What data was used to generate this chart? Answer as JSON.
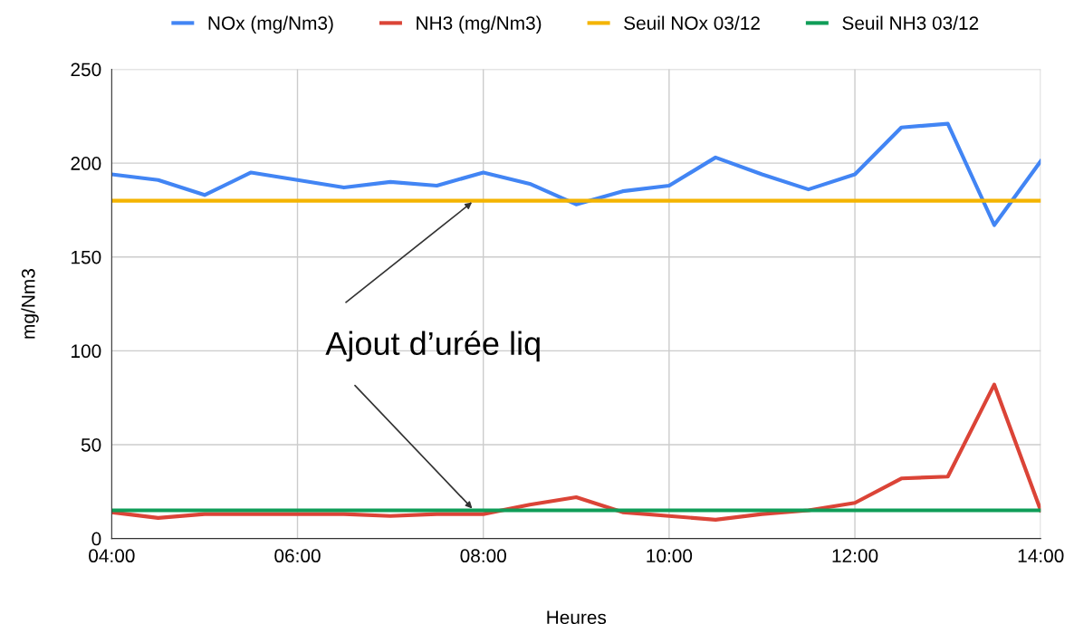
{
  "chart_data": {
    "type": "line",
    "xlabel": "Heures",
    "ylabel": "mg/Nm3",
    "x": [
      4,
      4.5,
      5,
      5.5,
      6,
      6.5,
      7,
      7.5,
      8,
      8.5,
      9,
      9.5,
      10,
      10.5,
      11,
      11.5,
      12,
      12.5,
      13,
      13.5,
      14
    ],
    "series": [
      {
        "name": "NOx (mg/Nm3)",
        "color": "#4285f4",
        "values": [
          194,
          191,
          183,
          195,
          191,
          187,
          190,
          188,
          195,
          189,
          178,
          185,
          188,
          203,
          194,
          186,
          194,
          219,
          221,
          167,
          201
        ]
      },
      {
        "name": "NH3 (mg/Nm3)",
        "color": "#db4437",
        "values": [
          14,
          11,
          13,
          13,
          13,
          13,
          12,
          13,
          13,
          18,
          22,
          14,
          12,
          10,
          13,
          15,
          19,
          32,
          33,
          82,
          15
        ]
      },
      {
        "name": "Seuil NOx 03/12",
        "color": "#f4b400",
        "values": [
          180,
          180,
          180,
          180,
          180,
          180,
          180,
          180,
          180,
          180,
          180,
          180,
          180,
          180,
          180,
          180,
          180,
          180,
          180,
          180,
          180
        ]
      },
      {
        "name": "Seuil NH3 03/12",
        "color": "#0f9d58",
        "values": [
          15,
          15,
          15,
          15,
          15,
          15,
          15,
          15,
          15,
          15,
          15,
          15,
          15,
          15,
          15,
          15,
          15,
          15,
          15,
          15,
          15
        ]
      }
    ],
    "annotations": [
      {
        "text": "Ajout d’urée liq",
        "x": 7.9,
        "y": 180
      }
    ],
    "xlim": [
      4,
      14
    ],
    "ylim": [
      0,
      250
    ],
    "xticks": [
      {
        "value": 4,
        "label": "04:00"
      },
      {
        "value": 6,
        "label": "06:00"
      },
      {
        "value": 8,
        "label": "08:00"
      },
      {
        "value": 10,
        "label": "10:00"
      },
      {
        "value": 12,
        "label": "12:00"
      },
      {
        "value": 14,
        "label": "14:00"
      }
    ],
    "yticks": [
      0,
      50,
      100,
      150,
      200,
      250
    ],
    "grid": true,
    "legend": "top",
    "marker": "none",
    "line_style": "solid"
  }
}
